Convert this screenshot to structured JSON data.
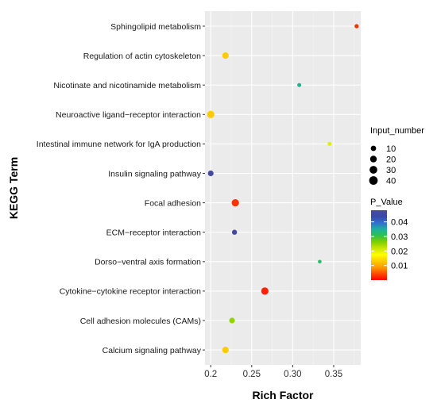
{
  "chart_data": {
    "type": "scatter",
    "xlabel": "Rich  Factor",
    "ylabel": "KEGG Term",
    "xlim": [
      0.193,
      0.383
    ],
    "x_ticks": [
      "0.2",
      "0.25",
      "0.30",
      "0.35"
    ],
    "x_tick_values": [
      0.2,
      0.25,
      0.3,
      0.35
    ],
    "grid": true,
    "legend_position": "right",
    "points": [
      {
        "term": "Sphingolipid metabolism",
        "rich_factor": 0.378,
        "input_number": 4,
        "p_value": 0.003
      },
      {
        "term": "Regulation of actin cytoskeleton",
        "rich_factor": 0.218,
        "input_number": 18,
        "p_value": 0.013
      },
      {
        "term": "Nicotinate and nicotinamide metabolism",
        "rich_factor": 0.308,
        "input_number": 3,
        "p_value": 0.034
      },
      {
        "term": "Neuroactive ligand−receptor interaction",
        "rich_factor": 0.2,
        "input_number": 26,
        "p_value": 0.013
      },
      {
        "term": "Intestinal immune network for IgA production",
        "rich_factor": 0.345,
        "input_number": 3,
        "p_value": 0.02
      },
      {
        "term": "Insulin signaling pathway",
        "rich_factor": 0.2,
        "input_number": 12,
        "p_value": 0.046
      },
      {
        "term": "Focal adhesion",
        "rich_factor": 0.23,
        "input_number": 26,
        "p_value": 0.003
      },
      {
        "term": "ECM−receptor interaction",
        "rich_factor": 0.229,
        "input_number": 8,
        "p_value": 0.046
      },
      {
        "term": "Dorso−ventral axis formation",
        "rich_factor": 0.333,
        "input_number": 2,
        "p_value": 0.032
      },
      {
        "term": "Cytokine−cytokine receptor interaction",
        "rich_factor": 0.266,
        "input_number": 26,
        "p_value": 0.002
      },
      {
        "term": "Cell adhesion molecules (CAMs)",
        "rich_factor": 0.226,
        "input_number": 12,
        "p_value": 0.025
      },
      {
        "term": "Calcium signaling pathway",
        "rich_factor": 0.218,
        "input_number": 18,
        "p_value": 0.013
      }
    ],
    "size_legend": {
      "title": "Input_number",
      "values": [
        10,
        20,
        30,
        40
      ],
      "labels": [
        "10",
        "20",
        "30",
        "40"
      ]
    },
    "color_legend": {
      "title": "P_Value",
      "range": [
        0.0,
        0.048
      ],
      "ticks": [
        0.01,
        0.02,
        0.03,
        0.04
      ],
      "tick_labels": [
        "0.01",
        "0.02",
        "0.03",
        "0.04"
      ],
      "colors": [
        "#ff0000",
        "#ff4a00",
        "#ff9a00",
        "#ffcc00",
        "#ffff00",
        "#c9e600",
        "#7fcf00",
        "#2fc04a",
        "#1fb0a0",
        "#2f6fd0",
        "#3a4aa8",
        "#4a4a9a"
      ]
    }
  }
}
